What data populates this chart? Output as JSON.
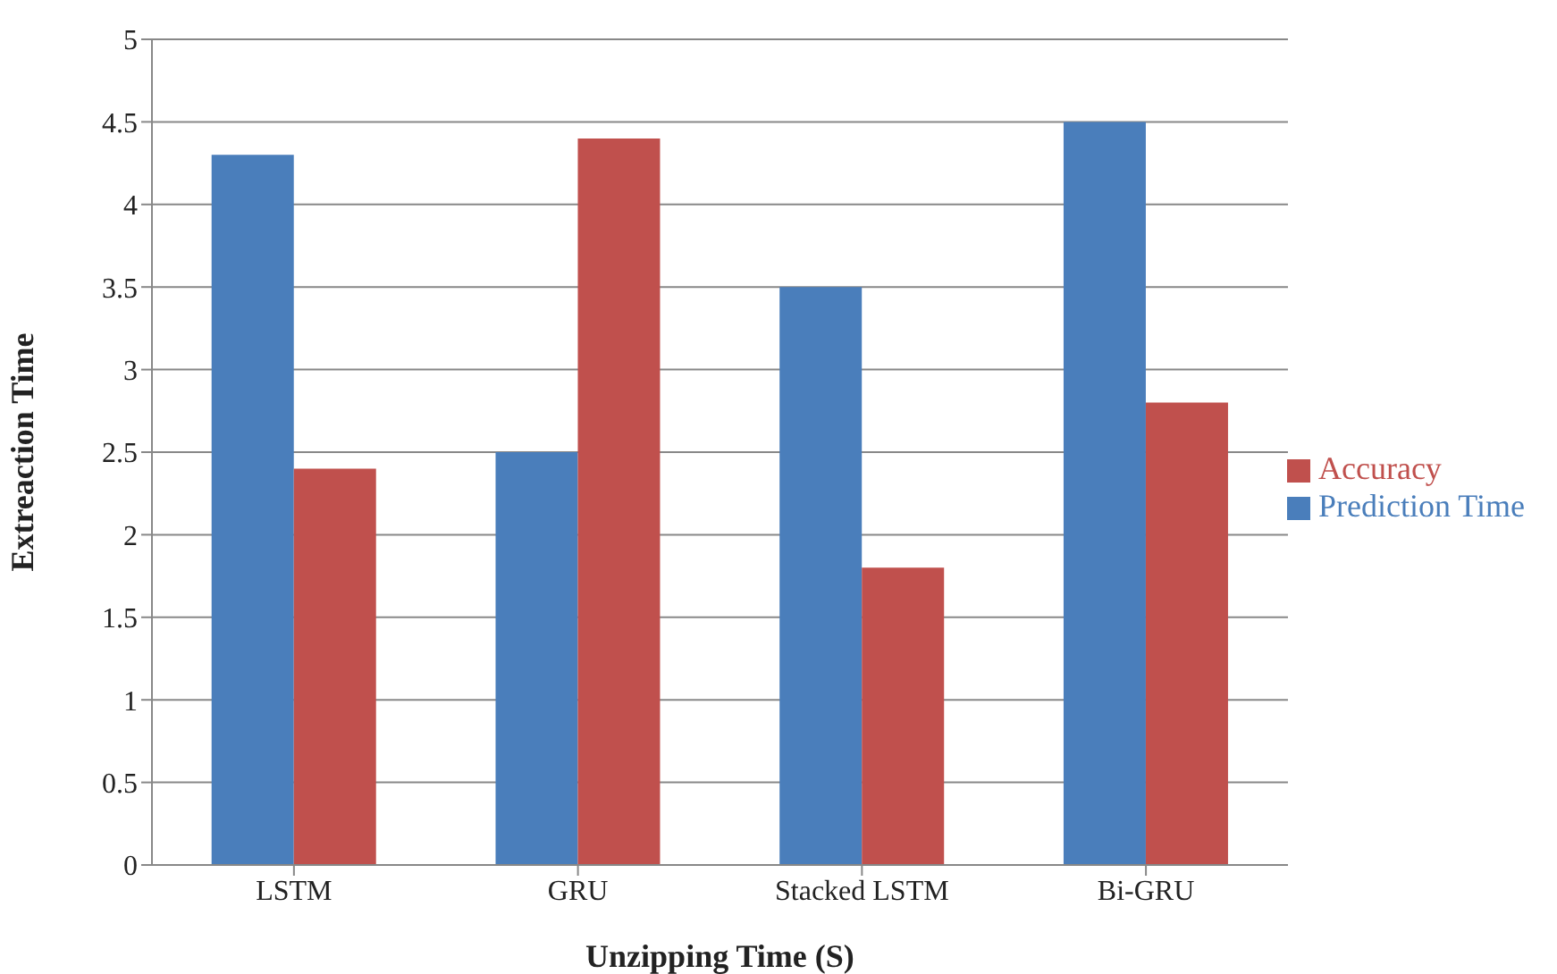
{
  "chart_data": {
    "type": "bar",
    "xlabel": "Unzipping Time (S)",
    "ylabel": "Extreaction Time",
    "categories": [
      "LSTM",
      "GRU",
      "Stacked LSTM",
      "Bi-GRU"
    ],
    "series": [
      {
        "name": "Prediction Time",
        "color": "#4a7ebb",
        "values": [
          4.3,
          2.5,
          3.5,
          4.5
        ]
      },
      {
        "name": "Accuracy",
        "color": "#c0504d",
        "values": [
          2.4,
          4.4,
          1.8,
          2.8
        ]
      }
    ],
    "ylim": [
      0,
      5
    ],
    "yticks": [
      0,
      0.5,
      1,
      1.5,
      2,
      2.5,
      3,
      3.5,
      4,
      4.5,
      5
    ],
    "grid": "y",
    "legend": "right"
  }
}
